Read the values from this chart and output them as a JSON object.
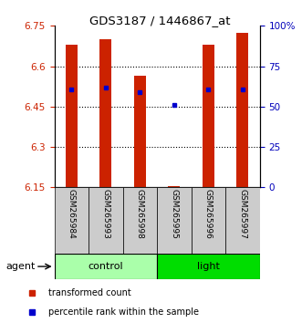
{
  "title": "GDS3187 / 1446867_at",
  "samples": [
    "GSM265984",
    "GSM265993",
    "GSM265998",
    "GSM265995",
    "GSM265996",
    "GSM265997"
  ],
  "groups": [
    "control",
    "control",
    "control",
    "light",
    "light",
    "light"
  ],
  "control_color": "#AAFFAA",
  "light_color": "#00DD00",
  "bar_values": [
    6.68,
    6.7,
    6.565,
    6.155,
    6.68,
    6.725
  ],
  "bar_bottom": 6.15,
  "blue_dot_values": [
    6.515,
    6.52,
    6.505,
    6.455,
    6.515,
    6.515
  ],
  "ylim_left": [
    6.15,
    6.75
  ],
  "ylim_right": [
    0,
    100
  ],
  "yticks_left": [
    6.15,
    6.3,
    6.45,
    6.6,
    6.75
  ],
  "yticks_right": [
    0,
    25,
    50,
    75,
    100
  ],
  "ytick_labels_left": [
    "6.15",
    "6.3",
    "6.45",
    "6.6",
    "6.75"
  ],
  "ytick_labels_right": [
    "0",
    "25",
    "50",
    "75",
    "100%"
  ],
  "bar_color": "#CC2200",
  "dot_color": "#0000CC",
  "bar_width": 0.35,
  "left_tick_color": "#CC2200",
  "right_tick_color": "#0000BB",
  "legend_items": [
    "transformed count",
    "percentile rank within the sample"
  ],
  "legend_colors": [
    "#CC2200",
    "#0000CC"
  ],
  "agent_label": "agent",
  "background_color": "#ffffff"
}
